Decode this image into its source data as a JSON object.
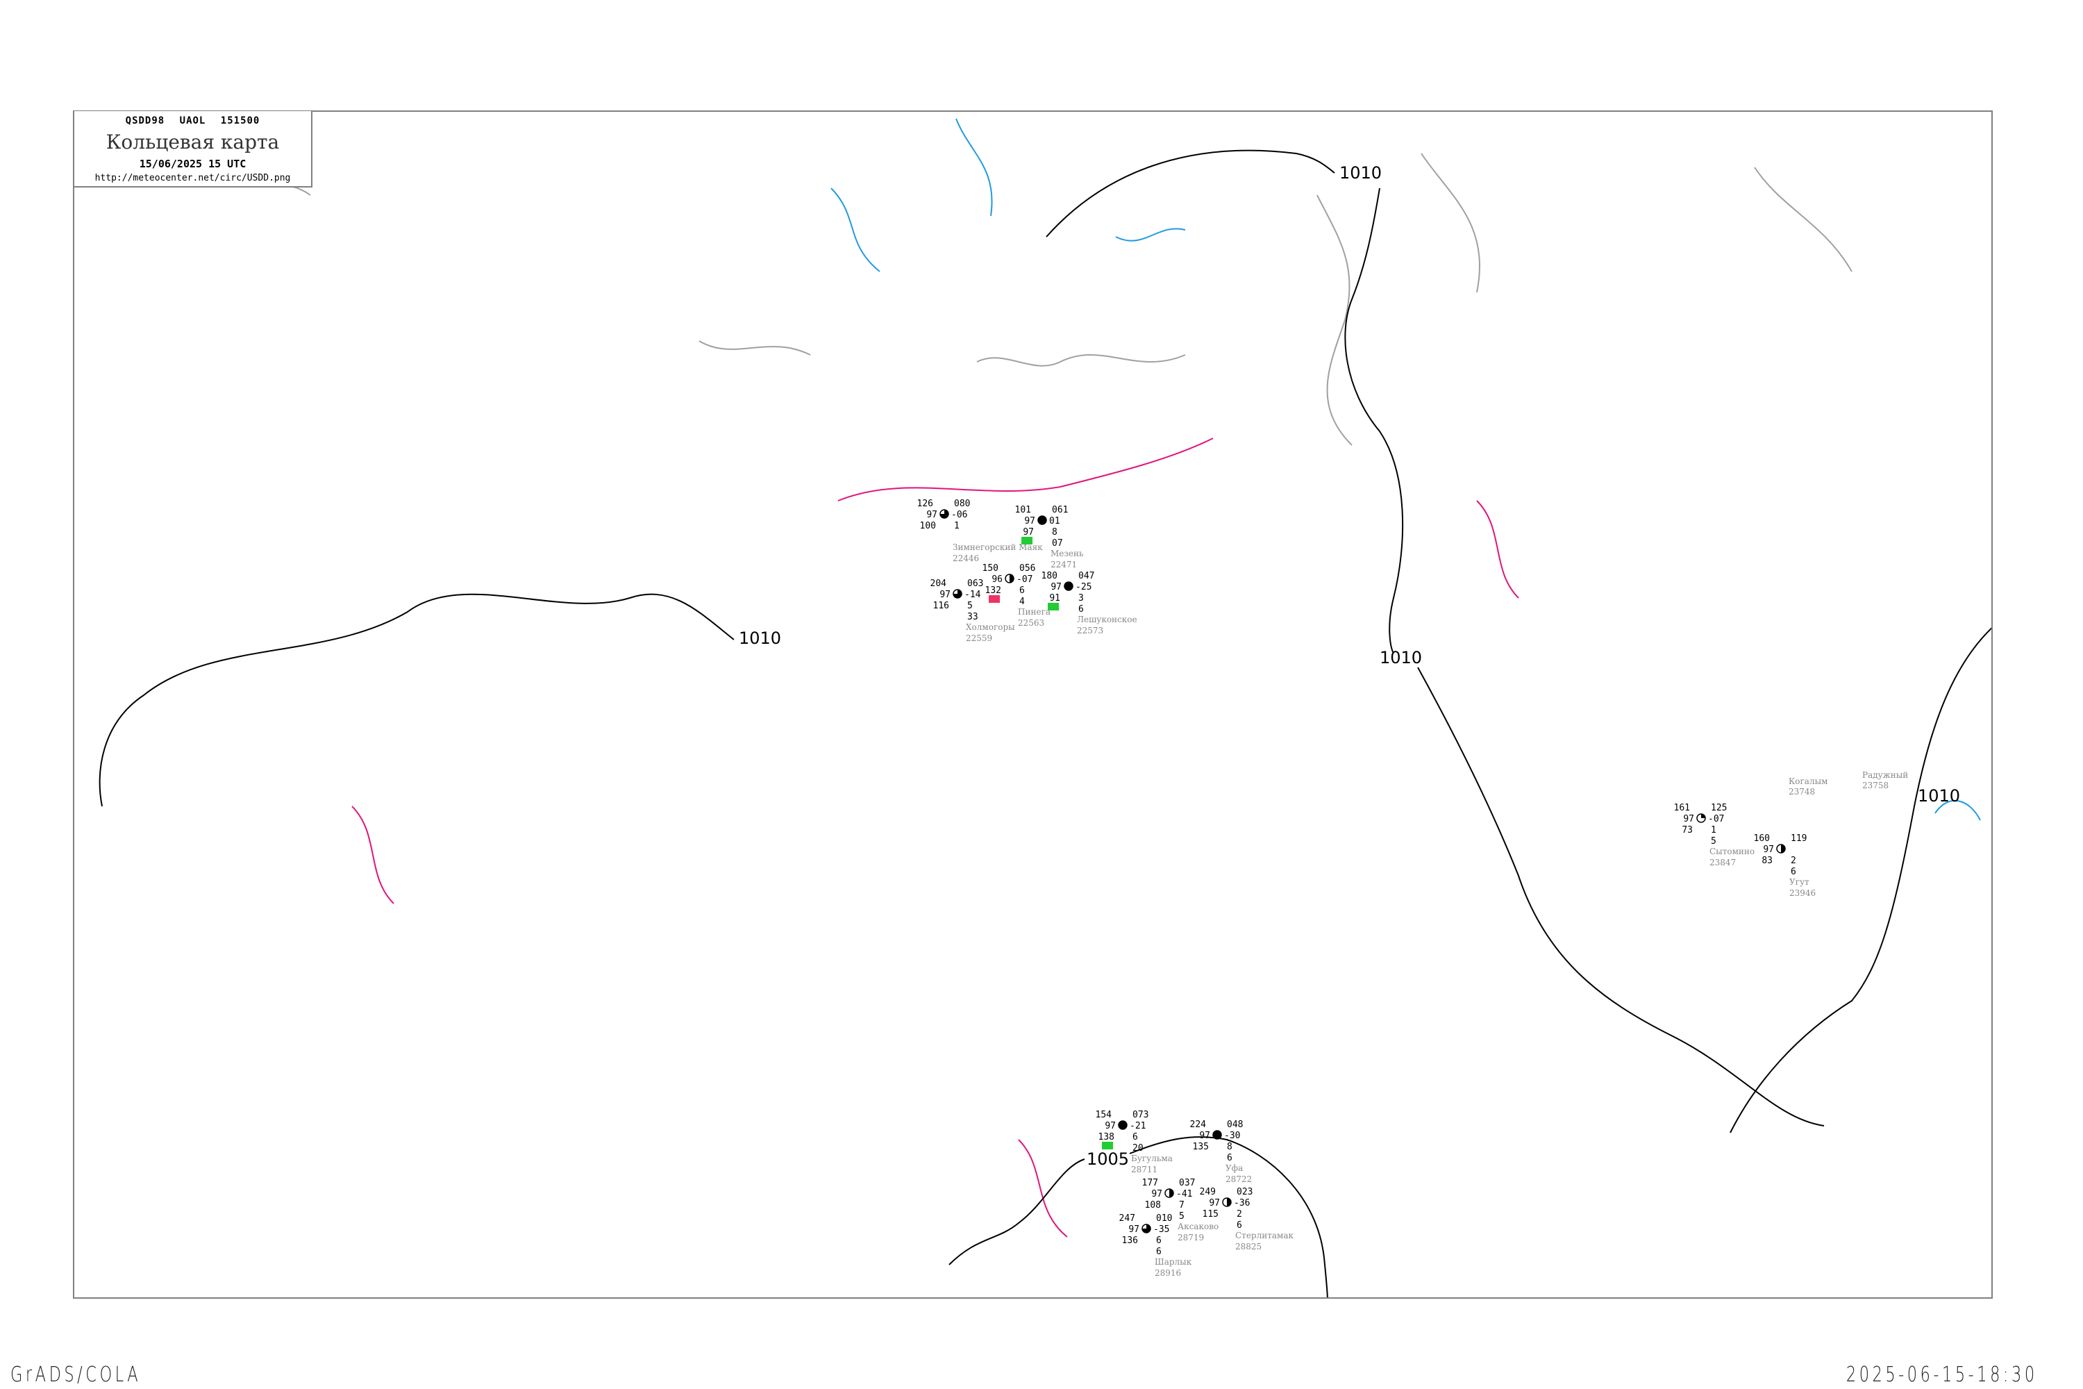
{
  "header": {
    "code_line": "QSDD98   UAOL   151500",
    "title": "Кольцевая карта",
    "datetime": "15/06/2025 15 UTC",
    "url": "http://meteocenter.net/circ/USDD.png"
  },
  "footer": {
    "left": "GrADS/COLA",
    "right": "2025-06-15-18:30"
  },
  "colors": {
    "isobar": "#000000",
    "coastline": "#a0a0a0",
    "isotherm": "#e0157a",
    "water": "#1e9be0",
    "frame": "#808080",
    "station_name": "#888888",
    "marker_green": "#22cc33",
    "marker_red": "#ee3366",
    "marker_yellow": "#ffee99"
  },
  "isobars": [
    {
      "label": "1010"
    },
    {
      "label": "1010"
    },
    {
      "label": "1010"
    },
    {
      "label": "1010"
    },
    {
      "label": "1005"
    }
  ],
  "stations": [
    {
      "name": "Бугульма",
      "id": "28711",
      "cloud_cover_oktas": 8,
      "tl": "154",
      "tr": "073",
      "ml": "97",
      "mr": "-21",
      "bl": "138",
      "br1": "6",
      "br2": "20",
      "marker": "green"
    },
    {
      "name": "Уфа",
      "id": "28722",
      "cloud_cover_oktas": 8,
      "tl": "224",
      "tr": "048",
      "ml": "97",
      "mr": "-30",
      "bl": "135",
      "br1": "8",
      "br2": "6"
    },
    {
      "name": "Аксаково",
      "id": "28719",
      "cloud_cover_oktas": 4,
      "tl": "177",
      "tr": "037",
      "ml": "97",
      "mr": "-41",
      "bl": "108",
      "br1": "7",
      "br2": "5"
    },
    {
      "name": "Стерлитамак",
      "id": "28825",
      "cloud_cover_oktas": 4,
      "tl": "249",
      "tr": "023",
      "ml": "97",
      "mr": "-36",
      "bl": "115",
      "br1": "2",
      "br2": "6"
    },
    {
      "name": "Шарлык",
      "id": "28916",
      "cloud_cover_oktas": 6,
      "tl": "247",
      "tr": "010",
      "ml": "97",
      "mr": "-35",
      "bl": "136",
      "br1": "6",
      "br2": "6"
    },
    {
      "name": "Пинега",
      "id": "22563",
      "cloud_cover_oktas": 4,
      "tl": "150",
      "tr": "056",
      "ml": "96",
      "mr": "-07",
      "bl": "132",
      "br1": "6",
      "br2": "4",
      "marker": "red"
    },
    {
      "name": "Холмогоры",
      "id": "22559",
      "cloud_cover_oktas": 6,
      "tl": "204",
      "tr": "063",
      "ml": "97",
      "mr": "-14",
      "bl": "116",
      "br1": "5",
      "br2": "33"
    },
    {
      "name": "Лешуконское",
      "id": "22573",
      "cloud_cover_oktas": 8,
      "tl": "180",
      "tr": "047",
      "ml": "97",
      "mr": "-25",
      "bl": "91",
      "br1": "3",
      "br2": "6",
      "marker": "green"
    },
    {
      "name": "Мезень",
      "id": "22471",
      "cloud_cover_oktas": 8,
      "tl": "101",
      "tr": "061",
      "ml": "97",
      "mr": "01",
      "bl": "97",
      "br1": "8",
      "br2": "07",
      "marker": "green"
    },
    {
      "name": "Сытомино",
      "id": "23847",
      "cloud_cover_oktas": 2,
      "tl": "161",
      "tr": "125",
      "ml": "97",
      "mr": "-07",
      "bl": "73",
      "br1": "1",
      "br2": "5"
    },
    {
      "name": "Угут",
      "id": "23946",
      "cloud_cover_oktas": 4,
      "tl": "160",
      "tr": "119",
      "ml": "97",
      "mr": "",
      "bl": "83",
      "br1": "2",
      "br2": "6"
    },
    {
      "name": "Зимнегорский Маяк",
      "id": "22446",
      "cloud_cover_oktas": 6,
      "tl": "126",
      "tr": "080",
      "ml": "97",
      "mr": "-06",
      "bl": "100",
      "br1": "1",
      "br2": ""
    }
  ],
  "place_labels": [
    {
      "name": "Когалым",
      "id": "23748"
    },
    {
      "name": "Радужный",
      "id": "23758"
    }
  ]
}
